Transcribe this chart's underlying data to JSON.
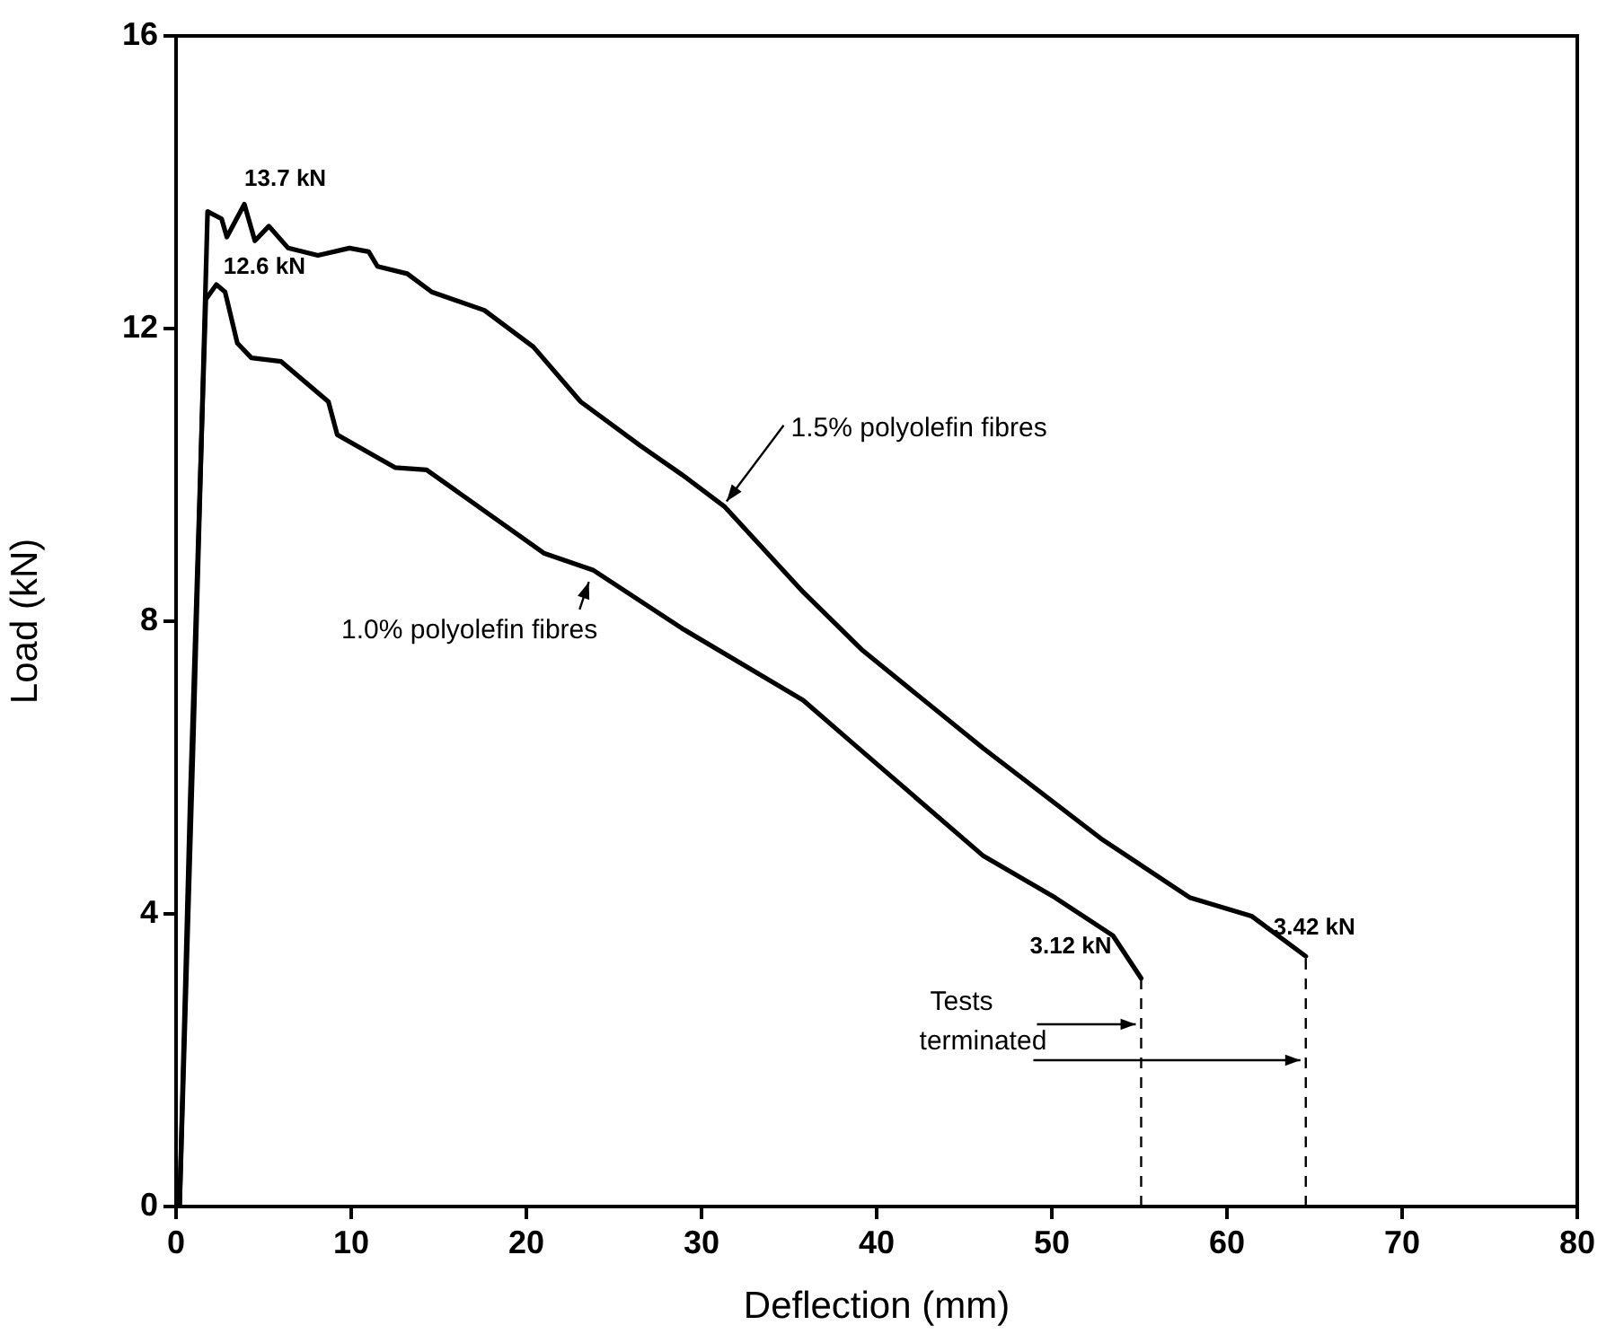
{
  "chart_data": {
    "type": "line",
    "xlabel": "Deflection (mm)",
    "ylabel": "Load (kN)",
    "xlim": [
      0,
      80
    ],
    "xticks": [
      0,
      10,
      20,
      30,
      40,
      50,
      60,
      70,
      80
    ],
    "ylim": [
      0,
      16
    ],
    "yticks": [
      0,
      4,
      8,
      12,
      16
    ],
    "grid": false,
    "legend": false,
    "marker": "none",
    "line_style": "solid",
    "series": [
      {
        "color": "#000000",
        "x": [
          0.2,
          1.0,
          1.8,
          2.6,
          2.9,
          3.9,
          4.5,
          5.3,
          6.4,
          8.1,
          9.9,
          11.0,
          11.5,
          13.2,
          14.6,
          17.6,
          20.4,
          23.1,
          26.5,
          28.9,
          31.3,
          35.8,
          39.2,
          46.1,
          52.8,
          57.9,
          61.4,
          64.5
        ],
        "values": [
          0,
          6.5,
          13.6,
          13.5,
          13.25,
          13.7,
          13.2,
          13.4,
          13.1,
          13.0,
          13.1,
          13.05,
          12.85,
          12.75,
          12.5,
          12.25,
          11.75,
          11.0,
          10.4,
          10.0,
          9.57,
          8.4,
          7.6,
          6.26,
          5.03,
          4.22,
          3.97,
          3.42
        ]
      },
      {
        "color": "#000000",
        "x": [
          0.2,
          0.8,
          1.7,
          2.3,
          2.8,
          3.5,
          4.3,
          6.0,
          8.7,
          9.2,
          12.5,
          14.3,
          21.0,
          23.8,
          28.9,
          35.8,
          38.5,
          46.1,
          50.2,
          53.5,
          55.1
        ],
        "values": [
          0,
          5.5,
          12.4,
          12.6,
          12.5,
          11.8,
          11.6,
          11.55,
          11.0,
          10.55,
          10.1,
          10.07,
          8.93,
          8.7,
          7.9,
          6.92,
          6.36,
          4.79,
          4.22,
          3.7,
          3.12
        ]
      }
    ],
    "ref_lines": [
      {
        "axis": "x",
        "value": 55.1,
        "line_style": "dashed",
        "color": "#000000"
      },
      {
        "axis": "x",
        "value": 64.5,
        "line_style": "dashed",
        "color": "#000000"
      }
    ],
    "annotations": [
      {
        "text": "13.7 kN",
        "x": 3.9,
        "y": 13.7
      },
      {
        "text": "12.6 kN",
        "x": 2.3,
        "y": 12.6
      },
      {
        "text": "3.12 kN",
        "x": 55.1,
        "y": 3.12
      },
      {
        "text": "3.42 kN",
        "x": 64.5,
        "y": 3.42
      },
      {
        "text": "1.5% polyolefin fibres",
        "x": 31.0,
        "y": 9.5
      },
      {
        "text": "1.0% polyolefin fibres",
        "x": 23.8,
        "y": 8.7
      },
      {
        "text": "Tests terminated",
        "x": 64.5,
        "y": 2.0
      }
    ]
  }
}
